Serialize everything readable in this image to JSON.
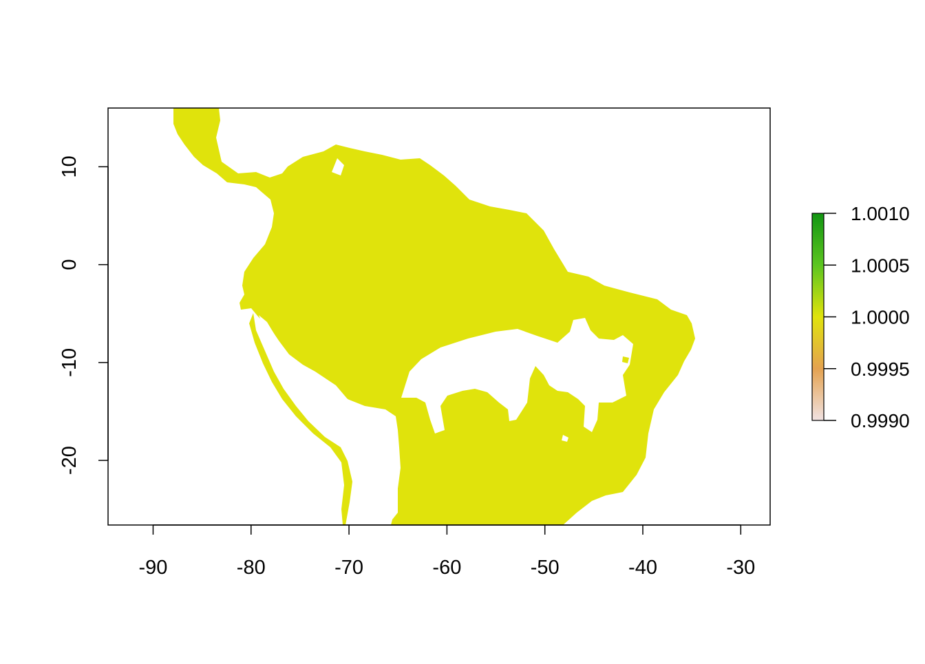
{
  "map": {
    "fill_color": "#E0E30C",
    "x_ticks": [
      "-90",
      "-80",
      "-70",
      "-60",
      "-50",
      "-40",
      "-30"
    ],
    "y_ticks": [
      "10",
      "0",
      "-10",
      "-20"
    ],
    "x_range": [
      -94.6,
      -27
    ],
    "y_range": [
      -26.6,
      16
    ]
  },
  "legend": {
    "labels": [
      "1.0010",
      "1.0005",
      "1.0000",
      "0.9995",
      "0.9990"
    ],
    "gradient": [
      "#129512",
      "#5CC520",
      "#E0E30C",
      "#E4A250",
      "#F0E2E2"
    ]
  }
}
